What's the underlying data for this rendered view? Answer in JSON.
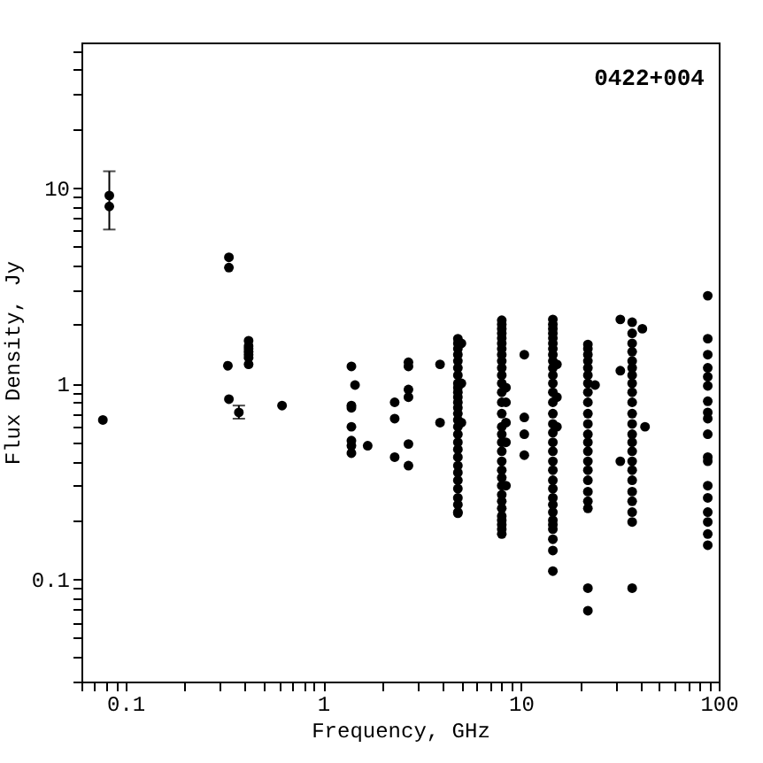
{
  "chart_data": {
    "type": "scatter",
    "title": "0422+004",
    "xlabel": "Frequency, GHz",
    "ylabel": "Flux Density, Jy",
    "log": "xy",
    "grid": false,
    "marker": "circle",
    "xlim": [
      0.06,
      100
    ],
    "ylim": [
      0.03,
      55
    ],
    "xticks": [
      {
        "value": 0.06,
        "label": null
      },
      {
        "value": 0.07,
        "label": null
      },
      {
        "value": 0.08,
        "label": null
      },
      {
        "value": 0.09,
        "label": null
      },
      0.1,
      {
        "value": 0.2,
        "label": null
      },
      {
        "value": 0.3,
        "label": null
      },
      {
        "value": 0.4,
        "label": null
      },
      {
        "value": 0.5,
        "label": null
      },
      {
        "value": 0.6,
        "label": null
      },
      {
        "value": 0.7,
        "label": null
      },
      {
        "value": 0.8,
        "label": null
      },
      {
        "value": 0.9,
        "label": null
      },
      1,
      {
        "value": 2,
        "label": null
      },
      {
        "value": 3,
        "label": null
      },
      {
        "value": 4,
        "label": null
      },
      {
        "value": 5,
        "label": null
      },
      {
        "value": 6,
        "label": null
      },
      {
        "value": 7,
        "label": null
      },
      {
        "value": 8,
        "label": null
      },
      {
        "value": 9,
        "label": null
      },
      10,
      {
        "value": 20,
        "label": null
      },
      {
        "value": 30,
        "label": null
      },
      {
        "value": 40,
        "label": null
      },
      {
        "value": 50,
        "label": null
      },
      {
        "value": 60,
        "label": null
      },
      {
        "value": 70,
        "label": null
      },
      {
        "value": 80,
        "label": null
      },
      {
        "value": 90,
        "label": null
      },
      100
    ],
    "yticks": [
      {
        "value": 0.03,
        "label": null
      },
      {
        "value": 0.04,
        "label": null
      },
      {
        "value": 0.05,
        "label": null
      },
      {
        "value": 0.06,
        "label": null
      },
      {
        "value": 0.07,
        "label": null
      },
      {
        "value": 0.08,
        "label": null
      },
      {
        "value": 0.09,
        "label": null
      },
      0.1,
      {
        "value": 0.2,
        "label": null
      },
      {
        "value": 0.3,
        "label": null
      },
      {
        "value": 0.4,
        "label": null
      },
      {
        "value": 0.5,
        "label": null
      },
      {
        "value": 0.6,
        "label": null
      },
      {
        "value": 0.7,
        "label": null
      },
      {
        "value": 0.8,
        "label": null
      },
      {
        "value": 0.9,
        "label": null
      },
      1,
      {
        "value": 2,
        "label": null
      },
      {
        "value": 3,
        "label": null
      },
      {
        "value": 4,
        "label": null
      },
      {
        "value": 5,
        "label": null
      },
      {
        "value": 6,
        "label": null
      },
      {
        "value": 7,
        "label": null
      },
      {
        "value": 8,
        "label": null
      },
      {
        "value": 9,
        "label": null
      },
      10,
      {
        "value": 20,
        "label": null
      },
      {
        "value": 30,
        "label": null
      },
      {
        "value": 40,
        "label": null
      },
      {
        "value": 50,
        "label": null
      }
    ],
    "series": [
      {
        "color": "#000000",
        "x": [
          0.077,
          0.083,
          0.083,
          0.334,
          0.334,
          0.33,
          0.334,
          0.375,
          0.42,
          0.42,
          0.42,
          0.42,
          0.42,
          0.42,
          0.42,
          0.62,
          1.39,
          1.45,
          1.39,
          1.39,
          1.39,
          1.39,
          1.39,
          1.39,
          1.68,
          2.3,
          2.3,
          2.3,
          2.7,
          2.7,
          2.7,
          2.7,
          2.7,
          2.7,
          3.9,
          3.9,
          4.8,
          4.8,
          4.8,
          4.8,
          4.8,
          4.8,
          4.8,
          4.8,
          4.8,
          4.8,
          4.8,
          4.8,
          4.8,
          4.8,
          4.8,
          4.8,
          4.8,
          4.8,
          4.8,
          4.8,
          4.8,
          4.8,
          4.8,
          4.8,
          4.8,
          4.8,
          4.8,
          4.8,
          5.0,
          5.0,
          5.0,
          8.0,
          8.0,
          8.0,
          8.0,
          8.0,
          8.0,
          8.0,
          8.0,
          8.0,
          8.0,
          8.0,
          8.0,
          8.0,
          8.0,
          8.0,
          8.0,
          8.0,
          8.0,
          8.0,
          8.0,
          8.0,
          8.0,
          8.0,
          8.0,
          8.0,
          8.0,
          8.0,
          8.0,
          8.0,
          8.0,
          8.0,
          8.4,
          8.4,
          8.4,
          8.4,
          8.4,
          10.4,
          10.4,
          10.4,
          10.4,
          14.5,
          14.5,
          14.5,
          14.5,
          14.5,
          14.5,
          14.5,
          14.5,
          14.5,
          14.5,
          14.5,
          14.5,
          14.5,
          14.5,
          14.5,
          14.5,
          14.5,
          14.5,
          14.5,
          14.5,
          14.5,
          14.5,
          14.5,
          14.5,
          14.5,
          14.5,
          14.5,
          14.5,
          14.5,
          14.5,
          14.5,
          14.5,
          15.2,
          15.2,
          15.2,
          21.8,
          21.8,
          21.8,
          21.8,
          21.8,
          21.8,
          21.8,
          21.8,
          21.8,
          21.8,
          21.8,
          21.8,
          21.8,
          21.8,
          21.8,
          21.8,
          21.8,
          21.8,
          21.8,
          21.8,
          21.8,
          21.8,
          23.7,
          31.8,
          31.8,
          31.8,
          36.5,
          36.5,
          36.5,
          36.5,
          36.5,
          36.5,
          36.5,
          36.5,
          36.5,
          36.5,
          36.5,
          36.5,
          36.5,
          36.5,
          36.5,
          36.5,
          36.5,
          36.5,
          36.5,
          36.5,
          36.5,
          36.5,
          36.5,
          41.1,
          42.4,
          88,
          88,
          88,
          88,
          88,
          88,
          88,
          88,
          88,
          88,
          88,
          88,
          88,
          88,
          88,
          88,
          88,
          88
        ],
        "values": [
          0.65,
          9.1,
          8.0,
          4.4,
          3.9,
          1.23,
          0.83,
          0.71,
          1.65,
          1.55,
          1.5,
          1.45,
          1.4,
          1.35,
          1.25,
          0.77,
          1.22,
          0.98,
          0.77,
          0.75,
          0.6,
          0.51,
          0.48,
          0.44,
          0.48,
          0.8,
          0.66,
          0.42,
          1.28,
          1.22,
          0.93,
          0.85,
          0.49,
          0.38,
          1.25,
          0.63,
          1.69,
          1.6,
          1.5,
          1.4,
          1.3,
          1.2,
          1.1,
          1.0,
          0.95,
          0.9,
          0.85,
          0.8,
          0.75,
          0.7,
          0.65,
          0.6,
          0.55,
          0.5,
          0.46,
          0.42,
          0.38,
          0.35,
          0.32,
          0.29,
          0.26,
          0.24,
          0.22,
          0.217,
          1.6,
          1.0,
          0.63,
          2.1,
          2.0,
          1.9,
          1.8,
          1.7,
          1.6,
          1.5,
          1.4,
          1.3,
          1.2,
          1.1,
          1.0,
          0.9,
          0.8,
          0.7,
          0.6,
          0.55,
          0.5,
          0.45,
          0.4,
          0.36,
          0.33,
          0.3,
          0.27,
          0.25,
          0.23,
          0.21,
          0.2,
          0.19,
          0.18,
          0.17,
          0.95,
          0.8,
          0.63,
          0.5,
          0.3,
          1.4,
          0.67,
          0.55,
          0.43,
          2.12,
          2.0,
          1.9,
          1.8,
          1.7,
          1.6,
          1.5,
          1.4,
          1.3,
          1.2,
          1.1,
          1.0,
          0.9,
          0.8,
          0.7,
          0.62,
          0.56,
          0.5,
          0.45,
          0.4,
          0.36,
          0.32,
          0.29,
          0.26,
          0.24,
          0.22,
          0.2,
          0.19,
          0.18,
          0.16,
          0.14,
          0.11,
          1.25,
          0.85,
          0.6,
          1.58,
          1.5,
          1.4,
          1.3,
          1.2,
          1.1,
          1.0,
          0.9,
          0.8,
          0.7,
          0.62,
          0.55,
          0.5,
          0.45,
          0.4,
          0.36,
          0.32,
          0.28,
          0.25,
          0.23,
          0.09,
          0.069,
          0.98,
          2.12,
          1.16,
          0.4,
          2.05,
          1.8,
          1.6,
          1.45,
          1.3,
          1.2,
          1.1,
          1.0,
          0.9,
          0.8,
          0.7,
          0.62,
          0.55,
          0.5,
          0.45,
          0.4,
          0.36,
          0.32,
          0.28,
          0.25,
          0.22,
          0.196,
          0.09,
          1.9,
          0.6,
          2.8,
          1.69,
          1.4,
          1.2,
          1.08,
          0.97,
          0.81,
          0.71,
          0.66,
          0.55,
          0.42,
          0.4,
          0.3,
          0.26,
          0.22,
          0.196,
          0.17,
          0.149
        ],
        "errors": [
          null,
          null,
          [
            6.1,
            12.1
          ],
          null,
          null,
          null,
          null,
          [
            0.66,
            0.77
          ],
          null,
          null,
          null,
          null,
          null,
          null,
          null,
          null,
          null,
          null,
          null,
          null,
          null,
          null,
          null,
          null,
          null,
          null,
          null,
          null,
          null,
          null,
          null,
          null,
          null,
          null,
          null,
          null,
          null,
          null,
          null,
          null,
          null,
          null,
          null,
          null,
          null,
          null,
          null,
          null,
          null,
          null,
          null,
          null,
          null,
          null,
          null,
          null,
          null,
          null,
          null,
          null,
          null,
          null,
          null,
          null,
          null,
          null,
          null,
          null,
          null,
          null,
          null,
          null,
          null,
          null,
          null,
          null,
          null,
          null,
          null,
          null,
          null,
          null,
          null,
          null,
          null,
          null,
          null,
          null,
          null,
          null,
          null,
          null,
          null,
          null,
          null,
          null,
          null,
          null,
          null,
          null,
          null,
          null,
          null,
          null,
          null,
          null,
          null,
          null,
          null,
          null,
          null,
          null,
          null,
          null,
          null,
          null,
          null,
          null,
          null,
          null,
          null,
          null,
          null,
          null,
          null,
          null,
          null,
          null,
          null,
          null,
          null,
          null,
          null,
          null,
          null,
          null,
          null,
          null,
          null,
          null,
          null,
          null,
          null,
          null,
          null,
          null,
          null,
          null,
          null,
          null,
          null,
          null,
          null,
          null,
          null,
          null,
          null,
          null,
          null,
          null,
          null,
          null,
          null,
          null,
          null,
          null,
          null,
          null,
          null,
          null,
          null,
          null,
          null,
          null,
          null,
          null,
          null,
          null,
          null,
          null,
          null,
          null,
          null,
          null,
          null,
          null,
          null,
          null,
          null,
          null,
          null,
          null,
          null,
          null,
          null,
          null,
          null,
          null,
          null,
          null,
          null,
          null,
          null,
          null,
          null,
          null,
          null,
          null,
          null,
          null,
          null
        ]
      }
    ]
  }
}
